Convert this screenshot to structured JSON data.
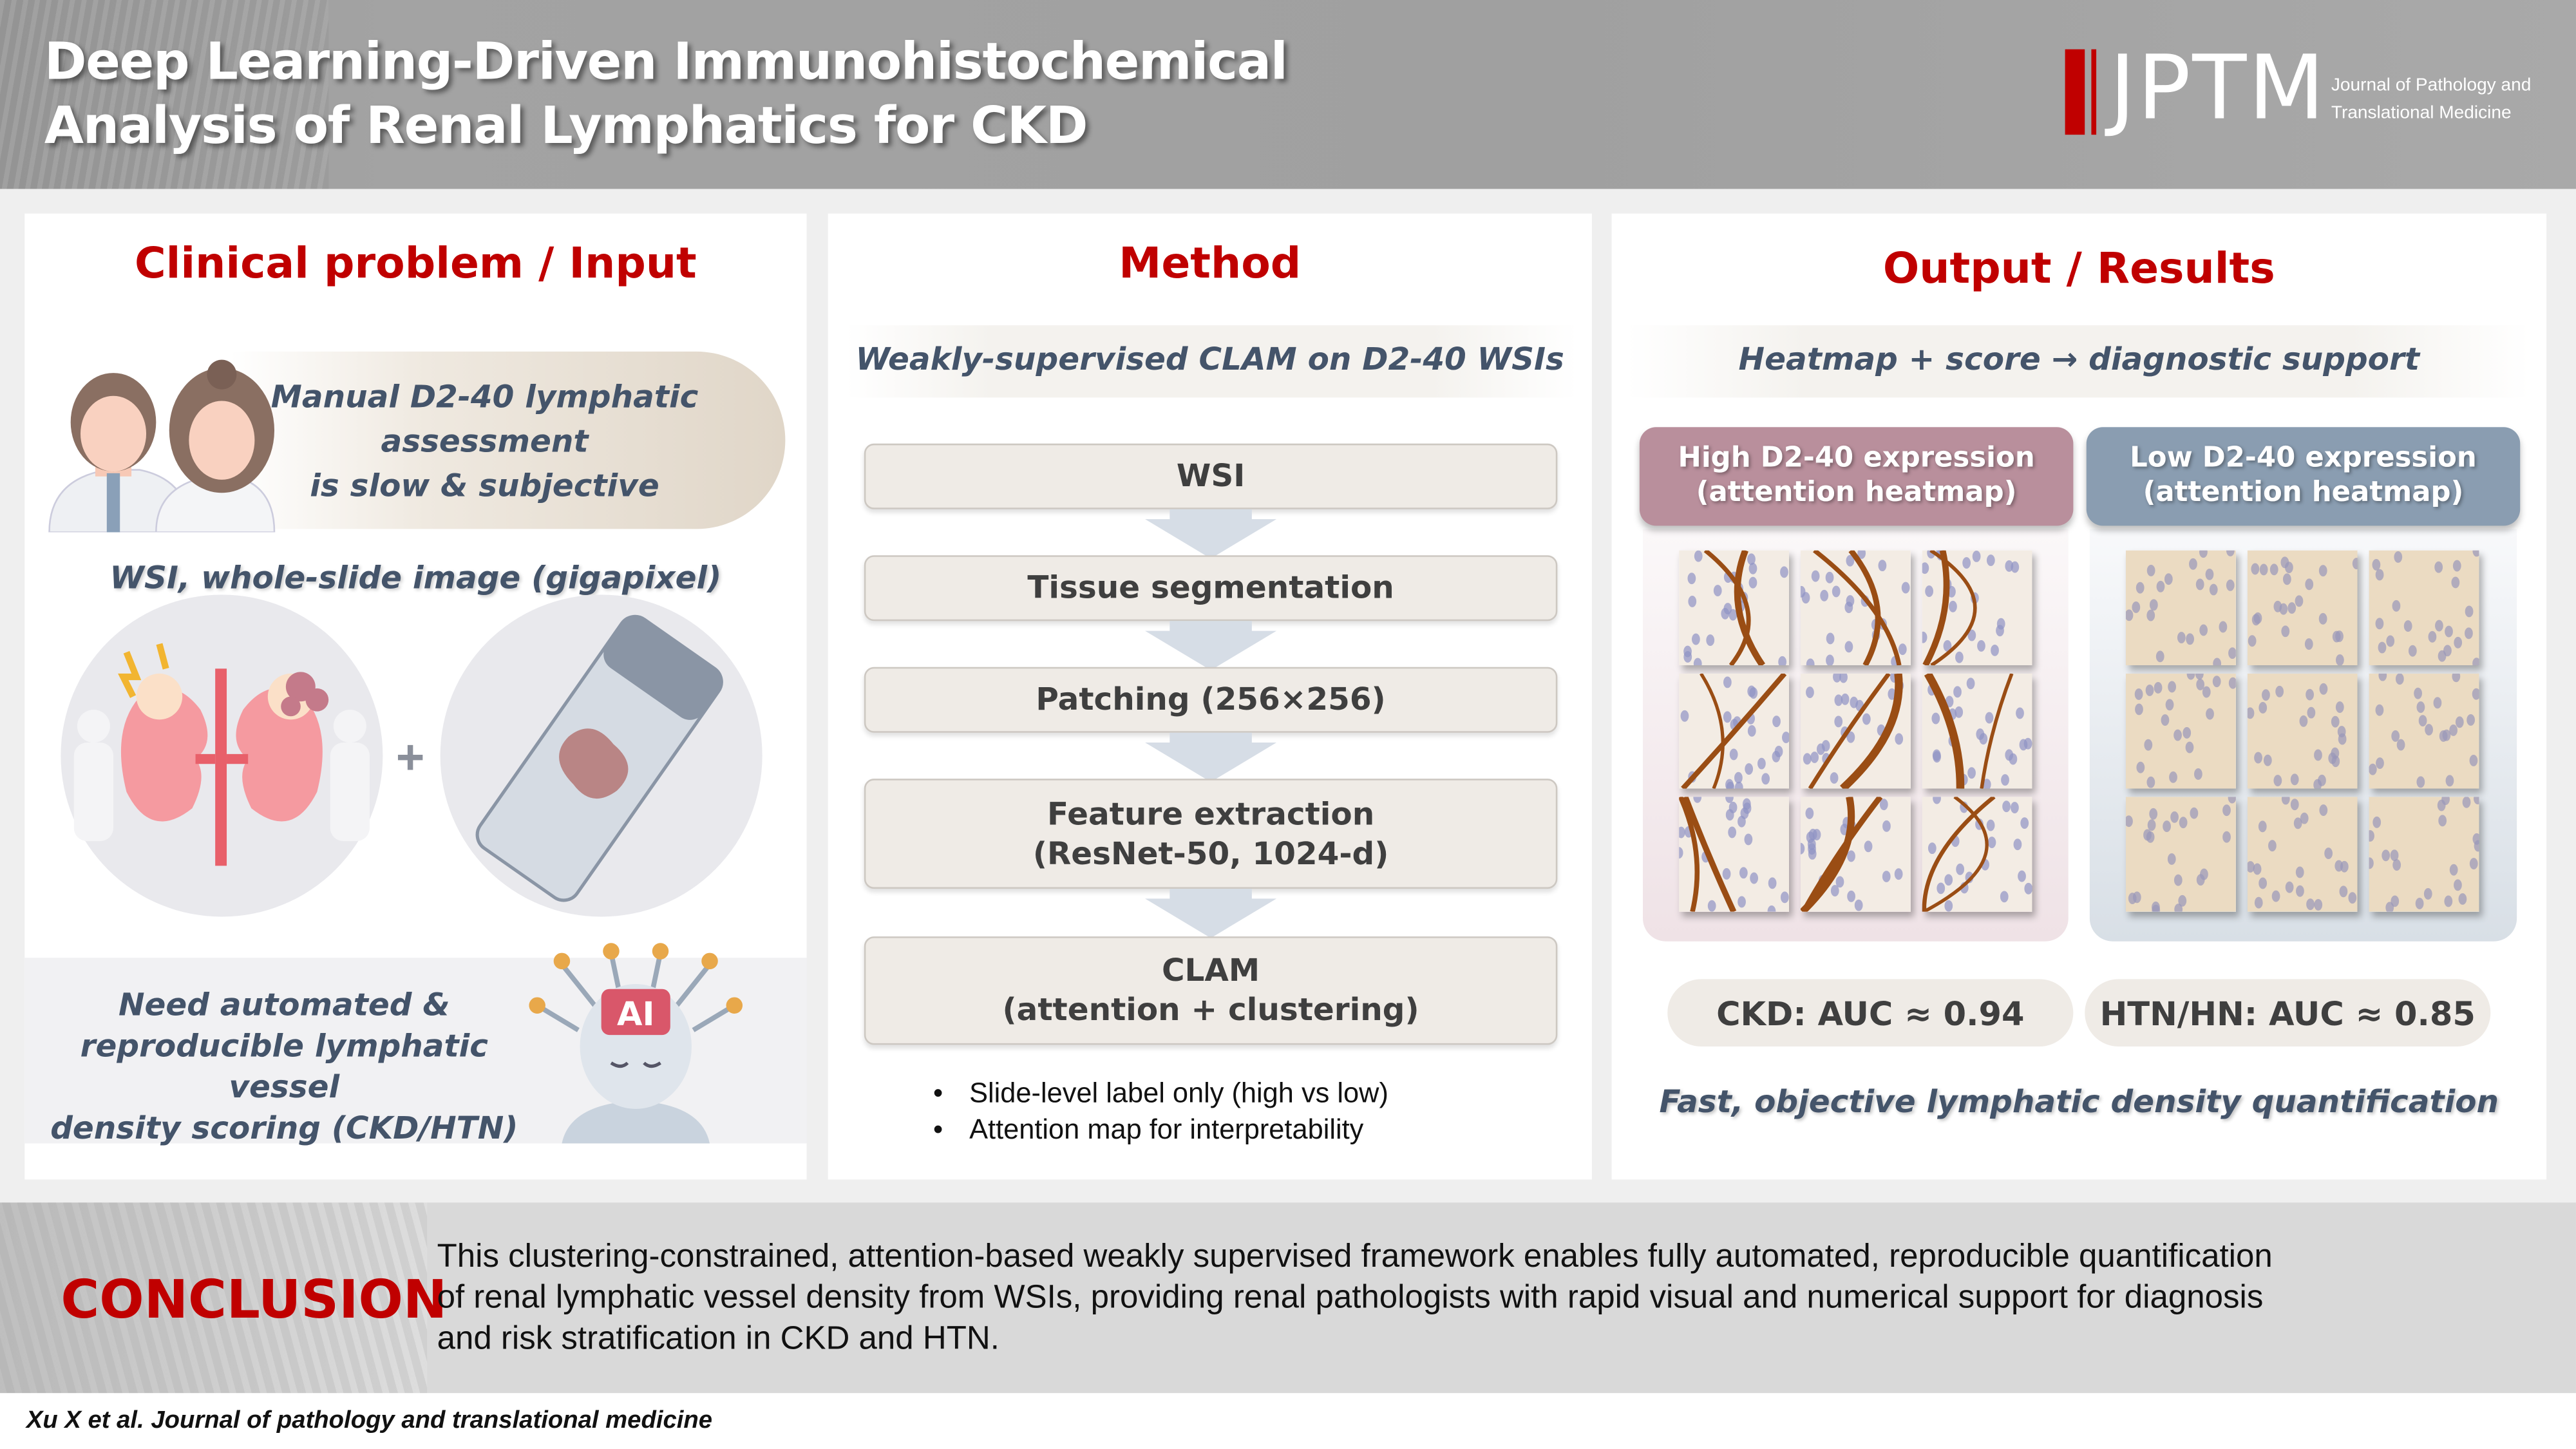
{
  "header": {
    "title_lines": [
      "Deep Learning-Driven Immunohistochemical",
      "Analysis of Renal Lymphatics for CKD"
    ],
    "logo": {
      "abbr": "JPTM",
      "sub_lines": [
        "Journal of Pathology and",
        "Translational Medicine"
      ]
    }
  },
  "colors": {
    "accent_red": "#c00000",
    "text_slate": "#44546a",
    "high_header": "#b98f9c",
    "low_header": "#8a9db1",
    "step_fill": "#efebe6",
    "arrow": "#d6dde6"
  },
  "panel_input": {
    "title": "Clinical problem / Input",
    "problem_lines": [
      "Manual D2-40 lymphatic",
      "assessment",
      "is slow & subjective"
    ],
    "wsi_caption": "WSI, whole-slide image (gigapixel)",
    "plus": "+",
    "need_lines": [
      "Need automated &",
      "reproducible lymphatic vessel",
      "density scoring (CKD/HTN)"
    ],
    "icons": [
      "doctors-icon",
      "kidney-icon",
      "glass-slide-icon",
      "ai-head-icon"
    ],
    "ai_badge": "AI"
  },
  "panel_method": {
    "title": "Method",
    "subtitle": "Weakly-supervised CLAM on D2-40 WSIs",
    "steps": [
      {
        "lines": [
          "WSI"
        ]
      },
      {
        "lines": [
          "Tissue segmentation"
        ]
      },
      {
        "lines": [
          "Patching (256×256)"
        ]
      },
      {
        "lines": [
          "Feature extraction",
          "(ResNet-50, 1024-d)"
        ]
      },
      {
        "lines": [
          "CLAM",
          "(attention + clustering)"
        ]
      }
    ],
    "bullets": [
      "Slide-level label only (high vs low)",
      "Attention map for interpretability"
    ]
  },
  "panel_output": {
    "title": "Output / Results",
    "subtitle": "Heatmap + score → diagnostic support",
    "high": {
      "lines": [
        "High D2-40 expression",
        "(attention heatmap)"
      ]
    },
    "low": {
      "lines": [
        "Low D2-40 expression",
        "(attention heatmap)"
      ]
    },
    "metrics": [
      "CKD: AUC ≈ 0.94",
      "HTN/HN: AUC ≈ 0.85"
    ],
    "tagline": "Fast, objective lymphatic density quantification"
  },
  "conclusion": {
    "label": "CONCLUSION",
    "lines": [
      "This clustering-constrained, attention-based weakly supervised framework enables fully automated, reproducible quantification",
      "of renal lymphatic vessel density from WSIs, providing renal pathologists with rapid visual and numerical support for diagnosis",
      "and risk stratification in CKD and HTN."
    ]
  },
  "footer": {
    "citation": "Xu X et al. Journal of pathology and translational medicine"
  }
}
